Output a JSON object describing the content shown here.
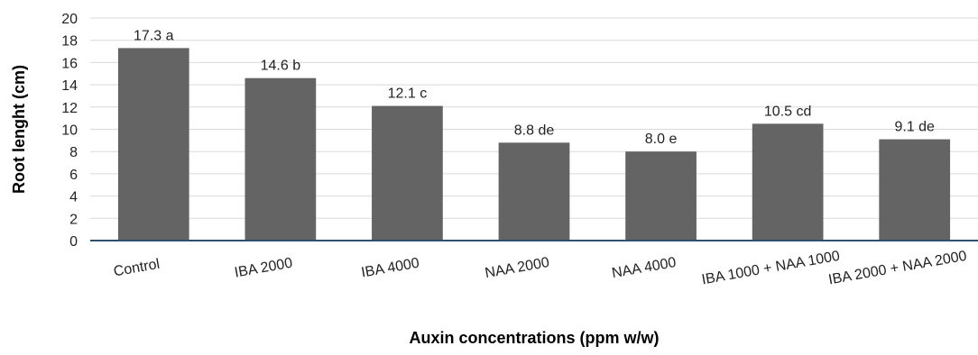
{
  "chart_data": {
    "type": "bar",
    "title": "",
    "xlabel": "Auxin concentrations (ppm w/w)",
    "ylabel": "Root lenght (cm)",
    "ylim": [
      0,
      20
    ],
    "yticks": [
      0,
      2,
      4,
      6,
      8,
      10,
      12,
      14,
      16,
      18,
      20
    ],
    "grid": true,
    "legend": "none",
    "bar_color": "#646464",
    "categories": [
      "Control",
      "IBA 2000",
      "IBA 4000",
      "NAA 2000",
      "NAA 4000",
      "IBA 1000 + NAA 1000",
      "IBA 2000 + NAA 2000"
    ],
    "values": [
      17.3,
      14.6,
      12.1,
      8.8,
      8.0,
      10.5,
      9.1
    ],
    "data_labels": [
      "17.3 a",
      "14.6 b",
      "12.1 c",
      "8.8 de",
      "8.0 e",
      "10.5 cd",
      "9.1 de"
    ]
  }
}
